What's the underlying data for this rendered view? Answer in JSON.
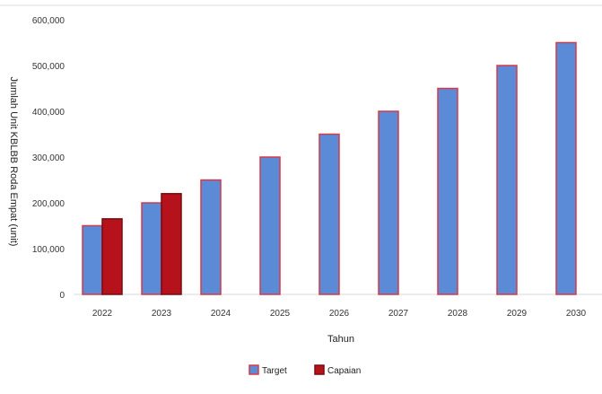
{
  "chart_data": {
    "type": "bar",
    "title": "",
    "xlabel": "Tahun",
    "ylabel": "Jumlah Unit KBLBB Roda Empat (unit)",
    "ylim": [
      0,
      600000
    ],
    "yticks": [
      "0",
      "100,000",
      "200,000",
      "300,000",
      "400,000",
      "500,000",
      "600,000"
    ],
    "ytick_values": [
      0,
      100000,
      200000,
      300000,
      400000,
      500000,
      600000
    ],
    "categories": [
      "2022",
      "2023",
      "2024",
      "2025",
      "2026",
      "2027",
      "2028",
      "2029",
      "2030"
    ],
    "series": [
      {
        "name": "Target",
        "color": "#5b8bd6",
        "border": "#d63a4a",
        "values": [
          150000,
          200000,
          250000,
          300000,
          350000,
          400000,
          450000,
          500000,
          550000
        ]
      },
      {
        "name": "Capaian",
        "color": "#b5121b",
        "border": "#7a0a10",
        "values": [
          165000,
          220000,
          null,
          null,
          null,
          null,
          null,
          null,
          null
        ]
      }
    ],
    "grid": false,
    "legend_position": "bottom"
  }
}
